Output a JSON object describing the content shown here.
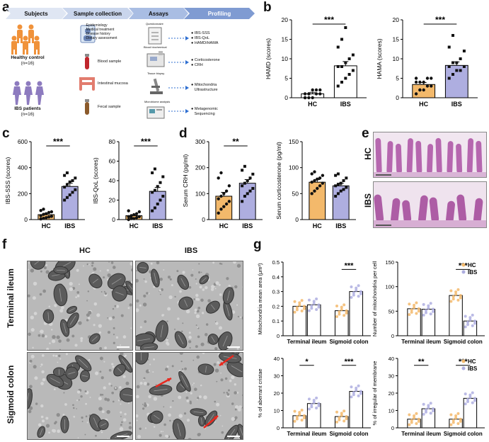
{
  "panel_labels": [
    "a",
    "b",
    "c",
    "d",
    "e",
    "f",
    "g"
  ],
  "workflow": {
    "headers": [
      "Subjects",
      "Sample collection",
      "Assays",
      "Profiling"
    ],
    "healthy": {
      "label": "Healthy control",
      "n": "(n=16)"
    },
    "ibs": {
      "label": "IBS patients",
      "n": "(n=16)"
    },
    "questionnaire_items": [
      "-Epidemiology",
      "-Medical treatment",
      "-Disease history",
      "-Dietary assessment"
    ],
    "samples": [
      "Blood sample",
      "Intestinal mucosa",
      "Fecal sample"
    ],
    "assays": [
      "Questionnaire",
      "Blood biochemical",
      "Tissue biopsy",
      "Microbiome analysis"
    ],
    "outputs": [
      [
        "IBS-SSS",
        "IBS-QoL",
        "HAMD/HAMA"
      ],
      [
        "Corticosterone",
        "CRH"
      ],
      [
        "Mitochondria",
        "Ultrastructure"
      ],
      [
        "Metagenomic",
        "Sequencing"
      ]
    ]
  },
  "histology": {
    "rows": [
      "HC",
      "IBS"
    ]
  },
  "em": {
    "cols": [
      "HC",
      "IBS"
    ],
    "rows": [
      "Terminal ileum",
      "Sigmoid colon"
    ]
  },
  "colors": {
    "hc": "#f3b96b",
    "ibs": "#aeaee0",
    "hc_pt": "#111111",
    "ibs_pt": "#111111",
    "arrow": "#e8281e"
  },
  "chart_data": [
    {
      "id": "b1",
      "type": "bar",
      "ylabel": "HAMD (scores)",
      "categories": [
        "HC",
        "IBS"
      ],
      "values": [
        1,
        8.2
      ],
      "sem": [
        0.4,
        1.1
      ],
      "ylim": [
        0,
        20
      ],
      "yticks": [
        0,
        5,
        10,
        15,
        20
      ],
      "sig": "***",
      "fill": "bw",
      "points": [
        [
          0,
          0,
          0,
          1,
          1,
          1,
          1,
          2,
          2,
          2,
          0,
          1
        ],
        [
          3,
          4,
          5,
          6,
          7,
          8,
          8,
          9,
          10,
          11,
          13,
          15,
          18
        ]
      ]
    },
    {
      "id": "b2",
      "type": "bar",
      "ylabel": "HAMA (scores)",
      "categories": [
        "HC",
        "IBS"
      ],
      "values": [
        3.4,
        8.3
      ],
      "sem": [
        0.5,
        0.9
      ],
      "ylim": [
        0,
        20
      ],
      "yticks": [
        0,
        5,
        10,
        15,
        20
      ],
      "sig": "***",
      "fill": "color",
      "points": [
        [
          1,
          2,
          2,
          3,
          3,
          4,
          4,
          4,
          5,
          5,
          5,
          2
        ],
        [
          5,
          6,
          7,
          7,
          8,
          8,
          9,
          9,
          10,
          12,
          13,
          16
        ]
      ]
    },
    {
      "id": "c1",
      "type": "bar",
      "ylabel": "IBS-SSS (scores)",
      "categories": [
        "HC",
        "IBS"
      ],
      "values": [
        38,
        255
      ],
      "sem": [
        10,
        25
      ],
      "ylim": [
        0,
        600
      ],
      "yticks": [
        0,
        200,
        400,
        600
      ],
      "sig": "***",
      "fill": "color",
      "points": [
        [
          5,
          10,
          15,
          20,
          25,
          30,
          40,
          45,
          55,
          60,
          70,
          80
        ],
        [
          150,
          170,
          190,
          210,
          230,
          250,
          270,
          290,
          300,
          320,
          340,
          360
        ]
      ]
    },
    {
      "id": "c2",
      "type": "bar",
      "ylabel": "IBS-QoL (scores)",
      "categories": [
        "HC",
        "IBS"
      ],
      "values": [
        4,
        29
      ],
      "sem": [
        1,
        4
      ],
      "ylim": [
        0,
        80
      ],
      "yticks": [
        0,
        20,
        40,
        60,
        80
      ],
      "sig": "***",
      "fill": "color",
      "points": [
        [
          0,
          1,
          1,
          2,
          3,
          3,
          4,
          5,
          6,
          8,
          9,
          2
        ],
        [
          9,
          12,
          16,
          20,
          24,
          28,
          30,
          34,
          38,
          44,
          48,
          52
        ]
      ]
    },
    {
      "id": "d1",
      "type": "bar",
      "ylabel": "Serum CRH (pg/ml)",
      "categories": [
        "HC",
        "IBS"
      ],
      "values": [
        90,
        140
      ],
      "sem": [
        15,
        14
      ],
      "ylim": [
        0,
        300
      ],
      "yticks": [
        0,
        100,
        200,
        300
      ],
      "sig": "**",
      "fill": "color",
      "points": [
        [
          25,
          40,
          50,
          60,
          70,
          80,
          90,
          100,
          110,
          130,
          160,
          180
        ],
        [
          70,
          90,
          100,
          110,
          120,
          130,
          140,
          150,
          160,
          175,
          190,
          205
        ]
      ]
    },
    {
      "id": "d2",
      "type": "bar",
      "ylabel": "Serum corticosterone (pg/ml)",
      "categories": [
        "HC",
        "IBS"
      ],
      "values": [
        72,
        65
      ],
      "sem": [
        5,
        5
      ],
      "ylim": [
        0,
        150
      ],
      "yticks": [
        0,
        50,
        100,
        150
      ],
      "sig": "",
      "fill": "color",
      "points": [
        [
          50,
          55,
          60,
          65,
          70,
          72,
          75,
          78,
          80,
          85,
          88,
          92
        ],
        [
          45,
          50,
          55,
          58,
          62,
          65,
          68,
          70,
          75,
          80,
          85,
          88
        ]
      ]
    },
    {
      "id": "g1",
      "type": "grouped_bar",
      "ylabel": "Mitochondria mean area (μm²)",
      "groups": [
        "Terminal ileum",
        "Sigmoid colon"
      ],
      "series": [
        {
          "name": "HC",
          "values": [
            0.2,
            0.17
          ]
        },
        {
          "name": "IBS",
          "values": [
            0.21,
            0.3
          ]
        }
      ],
      "ylim": [
        0,
        0.5
      ],
      "yticks": [
        0,
        0.1,
        0.2,
        0.3,
        0.4,
        0.5
      ],
      "sig": [
        "",
        "***"
      ],
      "legend": false
    },
    {
      "id": "g2",
      "type": "grouped_bar",
      "ylabel": "Number of mitochondria per cell",
      "groups": [
        "Terminal ileum",
        "Sigmoid colon"
      ],
      "series": [
        {
          "name": "HC",
          "values": [
            55,
            82
          ]
        },
        {
          "name": "IBS",
          "values": [
            54,
            30
          ]
        }
      ],
      "ylim": [
        0,
        150
      ],
      "yticks": [
        0,
        50,
        100,
        150
      ],
      "sig": [
        "",
        "***"
      ],
      "legend": true
    },
    {
      "id": "g3",
      "type": "grouped_bar",
      "ylabel": "% of aberrant cristae",
      "groups": [
        "Terminal ileum",
        "Sigmoid colon"
      ],
      "series": [
        {
          "name": "HC",
          "values": [
            7,
            6.5
          ]
        },
        {
          "name": "IBS",
          "values": [
            14,
            21
          ]
        }
      ],
      "ylim": [
        0,
        40
      ],
      "yticks": [
        0,
        10,
        20,
        30,
        40
      ],
      "sig": [
        "*",
        "***"
      ],
      "legend": false
    },
    {
      "id": "g4",
      "type": "grouped_bar",
      "ylabel": "% of irregular of membrane",
      "groups": [
        "Terminal ileum",
        "Sigmoid colon"
      ],
      "series": [
        {
          "name": "HC",
          "values": [
            5,
            5
          ]
        },
        {
          "name": "IBS",
          "values": [
            11,
            17
          ]
        }
      ],
      "ylim": [
        0,
        40
      ],
      "yticks": [
        0,
        10,
        20,
        30,
        40
      ],
      "sig": [
        "**",
        "***"
      ],
      "legend": true
    }
  ]
}
